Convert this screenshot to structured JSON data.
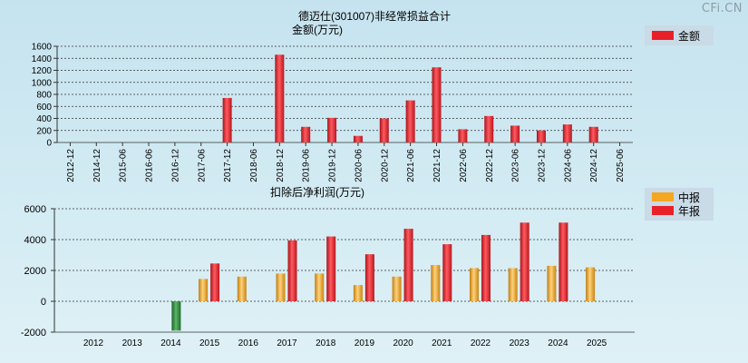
{
  "watermark": "CFi.CN",
  "colors": {
    "red": "#e8202a",
    "orange": "#f5a623",
    "green": "#2e8b3e",
    "grid": "#333333",
    "legend_bg": "#c9dbe6"
  },
  "chart_data": [
    {
      "type": "bar",
      "title": "德迈仕(301007)非经常损益合计",
      "ylabel": "金额(万元)",
      "legend": [
        "金额"
      ],
      "ylim": [
        0,
        1600
      ],
      "yticks": [
        0,
        200,
        400,
        600,
        800,
        1000,
        1200,
        1400,
        1600
      ],
      "categories": [
        "2012-12",
        "2014-12",
        "2015-06",
        "2016-06",
        "2016-12",
        "2017-06",
        "2017-12",
        "2018-06",
        "2018-12",
        "2019-06",
        "2019-12",
        "2020-06",
        "2020-12",
        "2021-06",
        "2021-12",
        "2022-06",
        "2022-12",
        "2023-06",
        "2023-12",
        "2024-06",
        "2024-12",
        "2025-06"
      ],
      "series": [
        {
          "name": "金额",
          "values": [
            null,
            null,
            null,
            null,
            null,
            null,
            740,
            null,
            1460,
            260,
            410,
            110,
            400,
            700,
            1250,
            220,
            440,
            280,
            200,
            300,
            260,
            null
          ]
        }
      ]
    },
    {
      "type": "bar",
      "title": "扣除后净利润(万元)",
      "legend": [
        "中报",
        "年报"
      ],
      "ylim": [
        -2000,
        6000
      ],
      "yticks": [
        -2000,
        0,
        2000,
        4000,
        6000
      ],
      "categories": [
        "2012",
        "2013",
        "2014",
        "2015",
        "2016",
        "2017",
        "2018",
        "2019",
        "2020",
        "2021",
        "2022",
        "2023",
        "2024",
        "2025"
      ],
      "series": [
        {
          "name": "中报",
          "values": [
            null,
            null,
            -1900,
            1450,
            1600,
            1800,
            1800,
            1050,
            1600,
            2350,
            2150,
            2150,
            2300,
            2200
          ]
        },
        {
          "name": "年报",
          "values": [
            null,
            null,
            null,
            2450,
            null,
            3950,
            4200,
            3050,
            4700,
            3700,
            4300,
            5100,
            5100,
            null
          ]
        }
      ]
    }
  ]
}
